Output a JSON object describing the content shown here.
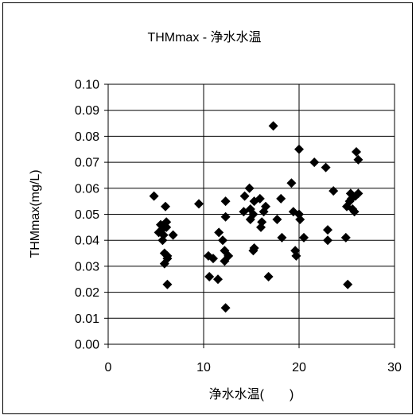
{
  "chart_data": {
    "type": "scatter",
    "title": "THMmax - 浄水水温",
    "xlabel": "浄水水温(　　)",
    "ylabel": "THMmax(mg/L)",
    "xlim": [
      0,
      30
    ],
    "ylim": [
      0,
      0.1
    ],
    "x_ticks": [
      "0",
      "10",
      "20",
      "30"
    ],
    "y_ticks": [
      "0.00",
      "0.01",
      "0.02",
      "0.03",
      "0.04",
      "0.05",
      "0.06",
      "0.07",
      "0.08",
      "0.09",
      "0.10"
    ],
    "grid": "vertical-and-horizontal",
    "legend": "none",
    "marker": "diamond",
    "marker_color": "#000000",
    "points": [
      [
        4.8,
        0.057
      ],
      [
        5.3,
        0.043
      ],
      [
        5.5,
        0.046
      ],
      [
        5.6,
        0.044
      ],
      [
        5.7,
        0.04
      ],
      [
        5.8,
        0.042
      ],
      [
        5.9,
        0.035
      ],
      [
        5.9,
        0.031
      ],
      [
        6.0,
        0.053
      ],
      [
        6.1,
        0.047
      ],
      [
        6.1,
        0.045
      ],
      [
        6.2,
        0.034
      ],
      [
        6.2,
        0.023
      ],
      [
        6.2,
        0.033
      ],
      [
        6.8,
        0.042
      ],
      [
        9.5,
        0.054
      ],
      [
        10.5,
        0.034
      ],
      [
        10.6,
        0.026
      ],
      [
        11.0,
        0.033
      ],
      [
        11.5,
        0.025
      ],
      [
        11.6,
        0.043
      ],
      [
        12.0,
        0.04
      ],
      [
        12.2,
        0.036
      ],
      [
        12.2,
        0.032
      ],
      [
        12.3,
        0.055
      ],
      [
        12.3,
        0.049
      ],
      [
        12.3,
        0.014
      ],
      [
        12.6,
        0.034
      ],
      [
        14.2,
        0.051
      ],
      [
        14.3,
        0.057
      ],
      [
        14.8,
        0.06
      ],
      [
        14.9,
        0.052
      ],
      [
        14.9,
        0.048
      ],
      [
        15.2,
        0.05
      ],
      [
        15.2,
        0.036
      ],
      [
        15.3,
        0.055
      ],
      [
        15.3,
        0.037
      ],
      [
        15.9,
        0.056
      ],
      [
        16.0,
        0.045
      ],
      [
        16.1,
        0.047
      ],
      [
        16.3,
        0.051
      ],
      [
        16.5,
        0.053
      ],
      [
        16.8,
        0.026
      ],
      [
        17.3,
        0.084
      ],
      [
        17.7,
        0.048
      ],
      [
        18.1,
        0.056
      ],
      [
        18.2,
        0.041
      ],
      [
        19.2,
        0.062
      ],
      [
        19.4,
        0.051
      ],
      [
        19.6,
        0.036
      ],
      [
        19.7,
        0.034
      ],
      [
        20.0,
        0.075
      ],
      [
        20.0,
        0.05
      ],
      [
        20.1,
        0.048
      ],
      [
        20.5,
        0.041
      ],
      [
        21.6,
        0.07
      ],
      [
        22.8,
        0.068
      ],
      [
        23.0,
        0.044
      ],
      [
        23.0,
        0.04
      ],
      [
        23.6,
        0.059
      ],
      [
        24.9,
        0.041
      ],
      [
        25.0,
        0.053
      ],
      [
        25.1,
        0.023
      ],
      [
        25.3,
        0.055
      ],
      [
        25.4,
        0.058
      ],
      [
        25.5,
        0.056
      ],
      [
        25.6,
        0.052
      ],
      [
        25.8,
        0.051
      ],
      [
        25.9,
        0.057
      ],
      [
        26.0,
        0.074
      ],
      [
        26.2,
        0.071
      ],
      [
        26.2,
        0.058
      ]
    ]
  }
}
